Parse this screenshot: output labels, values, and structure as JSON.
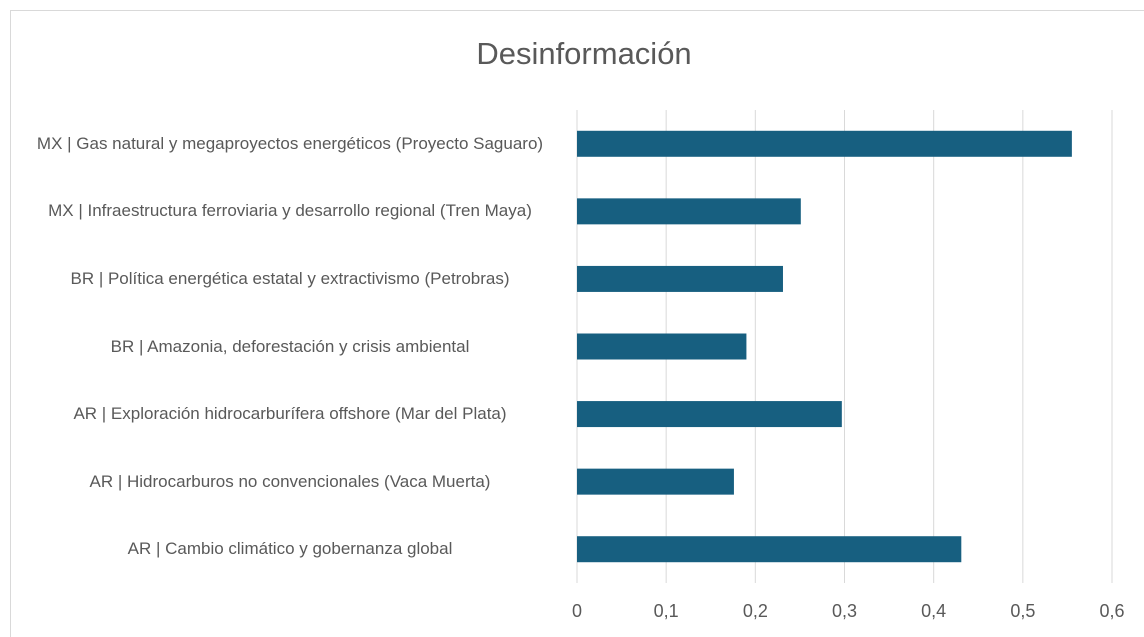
{
  "chart_data": {
    "type": "bar",
    "orientation": "horizontal",
    "title": "Desinformación",
    "categories": [
      "MX | Gas natural y megaproyectos energéticos (Proyecto Saguaro)",
      "MX | Infraestructura ferroviaria y desarrollo regional (Tren Maya)",
      "BR | Política energética estatal y extractivismo (Petrobras)",
      "BR | Amazonia, deforestación y crisis ambiental",
      "AR | Exploración hidrocarburífera offshore (Mar del Plata)",
      "AR | Hidrocarburos no convencionales (Vaca Muerta)",
      "AR | Cambio climático y gobernanza global"
    ],
    "values": [
      0.555,
      0.251,
      0.231,
      0.19,
      0.297,
      0.176,
      0.431
    ],
    "color": "#175f80",
    "xlim": [
      0,
      0.6
    ],
    "xticks": [
      0,
      {
        "value": 0.1,
        "label": "0,1"
      },
      {
        "value": 0.2,
        "label": "0,2"
      },
      {
        "value": 0.3,
        "label": "0,3"
      },
      {
        "value": 0.4,
        "label": "0,4"
      },
      {
        "value": 0.5,
        "label": "0,5"
      },
      {
        "value": 0.6,
        "label": "0,6"
      }
    ],
    "grid": true
  }
}
